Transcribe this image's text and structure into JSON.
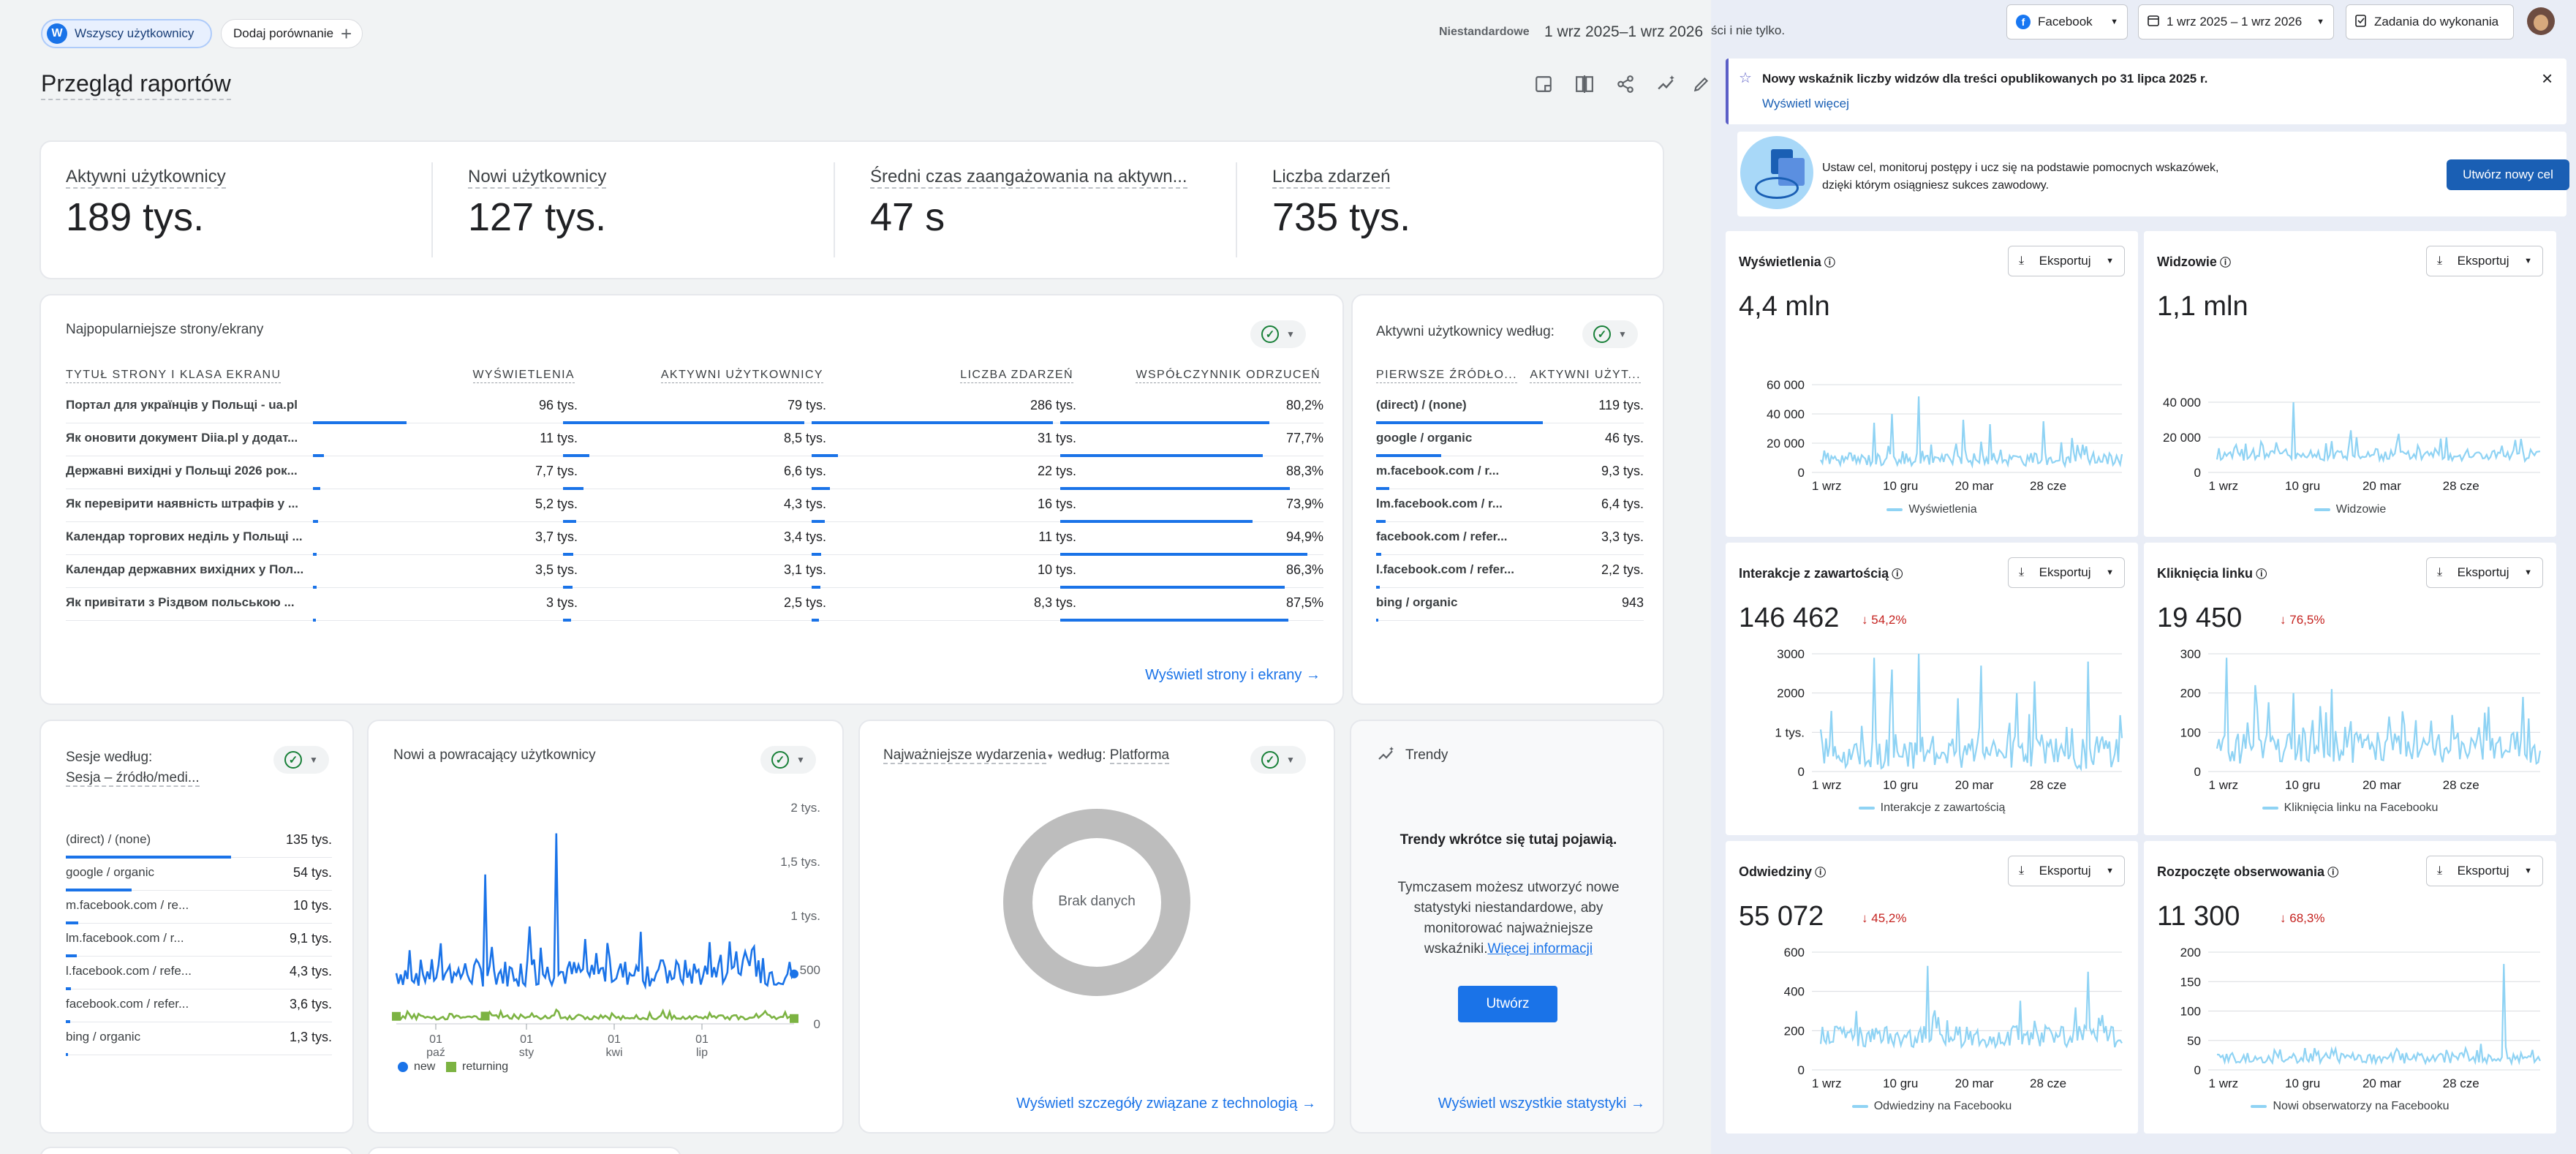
{
  "top": {
    "all_users": "Wszyscy użytkownicy",
    "avatar_letter": "W",
    "add_compare": "Dodaj porównanie",
    "custom": "Niestandardowe",
    "date_range": "1 wrz 2025–1 wrz 2026",
    "page_title": "Przegląd raportów"
  },
  "kpis": [
    {
      "label": "Aktywni użytkownicy",
      "value": "189 tys."
    },
    {
      "label": "Nowi użytkownicy",
      "value": "127 tys."
    },
    {
      "label": "Średni czas zaangażowania na aktywn...",
      "value": "47 s"
    },
    {
      "label": "Liczba zdarzeń",
      "value": "735 tys."
    }
  ],
  "pages_table": {
    "title": "Najpopularniejsze strony/ekrany",
    "headers": [
      "TYTUŁ STRONY I KLASA EKRANU",
      "WYŚWIETLENIA",
      "AKTYWNI UŻYTKOWNICY",
      "LICZBA ZDARZEŃ",
      "WSPÓŁCZYNNIK ODRZUCEŃ"
    ],
    "rows": [
      {
        "title": "Портал для українців у Польщі - ua.pl",
        "views": "96 tys.",
        "users": "79 tys.",
        "events": "286 tys.",
        "bounce": "80,2%",
        "b": [
          1.0,
          1.0,
          1.0,
          0.802
        ]
      },
      {
        "title": "Як оновити документ Diia.pl у додат...",
        "views": "11 tys.",
        "users": "8,5 tys.",
        "events": "31 tys.",
        "bounce": "77,7%",
        "b": [
          0.115,
          0.108,
          0.108,
          0.777
        ]
      },
      {
        "title": "Державні вихідні у Польщі 2026 рок...",
        "views": "7,7 tys.",
        "users": "6,6 tys.",
        "events": "22 tys.",
        "bounce": "88,3%",
        "b": [
          0.08,
          0.084,
          0.077,
          0.883
        ]
      },
      {
        "title": "Як перевірити наявність штрафів у ...",
        "views": "5,2 tys.",
        "users": "4,3 tys.",
        "events": "16 tys.",
        "bounce": "73,9%",
        "b": [
          0.054,
          0.054,
          0.056,
          0.739
        ]
      },
      {
        "title": "Календар торгових неділь у Польщі ...",
        "views": "3,7 tys.",
        "users": "3,4 tys.",
        "events": "11 tys.",
        "bounce": "94,9%",
        "b": [
          0.039,
          0.043,
          0.038,
          0.949
        ]
      },
      {
        "title": "Календар державних вихідних у Пол...",
        "views": "3,5 tys.",
        "users": "3,1 tys.",
        "events": "10 tys.",
        "bounce": "86,3%",
        "b": [
          0.036,
          0.039,
          0.035,
          0.863
        ]
      },
      {
        "title": "Як привітати з Різдвом польською ...",
        "views": "3 tys.",
        "users": "2,5 tys.",
        "events": "8,3 tys.",
        "bounce": "87,5%",
        "b": [
          0.031,
          0.032,
          0.029,
          0.875
        ]
      }
    ],
    "link": "Wyświetl strony i ekrany"
  },
  "sources_table": {
    "title": "Aktywni użytkownicy według:",
    "subtitle": "",
    "headers": [
      "PIERWSZE ŹRÓDŁO...",
      "AKTYWNI UŻYT..."
    ],
    "rows": [
      {
        "name": "(direct) / (none)",
        "value": "119 tys.",
        "b": 1.0
      },
      {
        "name": "google / organic",
        "value": "46 tys.",
        "b": 0.39
      },
      {
        "name": "m.facebook.com / r...",
        "value": "9,3 tys.",
        "b": 0.08
      },
      {
        "name": "lm.facebook.com / r...",
        "value": "6,4 tys.",
        "b": 0.055
      },
      {
        "name": "facebook.com / refer...",
        "value": "3,3 tys.",
        "b": 0.03
      },
      {
        "name": "l.facebook.com / refer...",
        "value": "2,2 tys.",
        "b": 0.02
      },
      {
        "name": "bing / organic",
        "value": "943",
        "b": 0.01
      }
    ]
  },
  "sessions_card": {
    "title": "Sesje według:",
    "subtitle": "Sesja – źródło/medi...",
    "rows": [
      {
        "name": "(direct) / (none)",
        "value": "135 tys.",
        "b": 1.0
      },
      {
        "name": "google / organic",
        "value": "54 tys.",
        "b": 0.4
      },
      {
        "name": "m.facebook.com / re...",
        "value": "10 tys.",
        "b": 0.075
      },
      {
        "name": "lm.facebook.com / r...",
        "value": "9,1 tys.",
        "b": 0.068
      },
      {
        "name": "l.facebook.com / refe...",
        "value": "4,3 tys.",
        "b": 0.032
      },
      {
        "name": "facebook.com / refer...",
        "value": "3,6 tys.",
        "b": 0.027
      },
      {
        "name": "bing / organic",
        "value": "1,3 tys.",
        "b": 0.01
      }
    ]
  },
  "new_returning": {
    "title": "Nowi a powracający użytkownicy",
    "y_ticks": [
      "2 tys.",
      "1,5 tys.",
      "1 tys.",
      "500",
      "0"
    ],
    "x_ticks": [
      [
        "01",
        "paź"
      ],
      [
        "01",
        "sty"
      ],
      [
        "01",
        "kwi"
      ],
      [
        "01",
        "lip"
      ]
    ],
    "legend": [
      "new",
      "returning"
    ]
  },
  "events_card": {
    "title": "Najważniejsze wydarzenia",
    "by": "według:",
    "dim": "Platforma",
    "empty": "Brak danych",
    "link": "Wyświetl szczegóły związane z technologią"
  },
  "trends_card": {
    "title": "Trendy",
    "heading": "Trendy wkrótce się tutaj pojawią.",
    "body": "Tymczasem możesz utworzyć nowe statystyki niestandardowe, aby monitorować najważniejsze wskaźniki.",
    "more": "Więcej informacji",
    "button": "Utwórz",
    "link": "Wyświetl wszystkie statystyki"
  },
  "right": {
    "header_fragment": "ści i nie tylko.",
    "platform": "Facebook",
    "range": "1 wrz 2025 – 1 wrz 2026",
    "tasks": "Zadania do wykonania",
    "notice": "Nowy wskaźnik liczby widzów dla treści opublikowanych po 31 lipca 2025 r.",
    "notice_link": "Wyświetl więcej",
    "goal_text": "Ustaw cel, monitoruj postępy i ucz się na podstawie pomocnych wskazówek, dzięki którym osiągniesz sukces zawodowy.",
    "goal_button": "Utwórz nowy cel",
    "export": "Eksportuj"
  },
  "metrics": [
    {
      "title": "Wyświetlenia",
      "value": "4,4 mln",
      "change": "",
      "legend": "Wyświetlenia",
      "y_ticks": [
        "60 000",
        "40 000",
        "20 000",
        "0"
      ],
      "x_ticks": [
        "1 wrz",
        "10 gru",
        "20 mar",
        "28 cze"
      ]
    },
    {
      "title": "Widzowie",
      "value": "1,1 mln",
      "change": "",
      "legend": "Widzowie",
      "y_ticks": [
        "40 000",
        "20 000",
        "0"
      ],
      "x_ticks": [
        "1 wrz",
        "10 gru",
        "20 mar",
        "28 cze"
      ]
    },
    {
      "title": "Interakcje z zawartością",
      "value": "146 462",
      "change": "54,2%",
      "legend": "Interakcje z zawartością",
      "y_ticks": [
        "3000",
        "2000",
        "1 tys.",
        "0"
      ],
      "x_ticks": [
        "1 wrz",
        "10 gru",
        "20 mar",
        "28 cze"
      ]
    },
    {
      "title": "Kliknięcia linku",
      "value": "19 450",
      "change": "76,5%",
      "legend": "Kliknięcia linku na Facebooku",
      "y_ticks": [
        "300",
        "200",
        "100",
        "0"
      ],
      "x_ticks": [
        "1 wrz",
        "10 gru",
        "20 mar",
        "28 cze"
      ]
    },
    {
      "title": "Odwiedziny",
      "value": "55 072",
      "change": "45,2%",
      "legend": "Odwiedziny na Facebooku",
      "y_ticks": [
        "600",
        "400",
        "200",
        "0"
      ],
      "x_ticks": [
        "1 wrz",
        "10 gru",
        "20 mar",
        "28 cze"
      ]
    },
    {
      "title": "Rozpoczęte obserwowania",
      "value": "11 300",
      "change": "68,3%",
      "legend": "Nowi obserwatorzy na Facebooku",
      "y_ticks": [
        "200",
        "150",
        "100",
        "50",
        "0"
      ],
      "x_ticks": [
        "1 wrz",
        "10 gru",
        "20 mar",
        "28 cze"
      ]
    }
  ],
  "colors": {
    "accent": "#1a73e8",
    "returning": "#7cb342",
    "sparkline": "#8fd3f4",
    "negative": "#c5221f",
    "goal_button": "#1a5fb4"
  }
}
